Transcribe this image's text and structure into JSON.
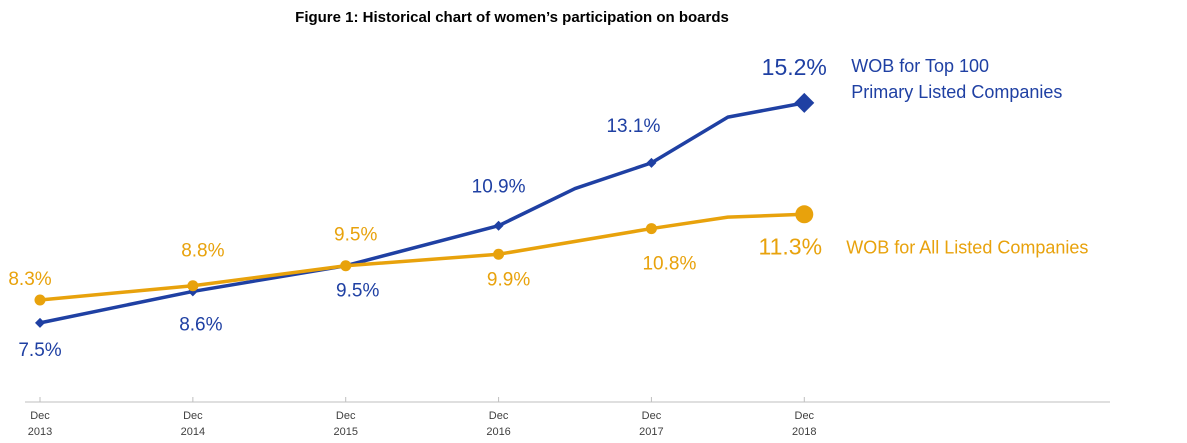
{
  "chart_data": {
    "type": "line",
    "title": "Figure 1: Historical chart of women’s participation on boards",
    "x": [
      2013,
      2014,
      2015,
      2016,
      2016.5,
      2017,
      2017.5,
      2018
    ],
    "xlim": [
      2013,
      2020
    ],
    "xticks": [
      {
        "value": 2013,
        "label": "Dec 2013"
      },
      {
        "value": 2014,
        "label": "Dec 2014"
      },
      {
        "value": 2015,
        "label": "Dec 2015"
      },
      {
        "value": 2016,
        "label": "Dec 2016"
      },
      {
        "value": 2017,
        "label": "Dec 2017"
      },
      {
        "value": 2018,
        "label": "Dec 2018"
      }
    ],
    "ylim": [
      4.8,
      18.8
    ],
    "series": [
      {
        "name": "WOB for Top 100 Primary Listed Companies",
        "color": "#1f40a3",
        "values": [
          7.5,
          8.6,
          9.5,
          10.9,
          12.2,
          13.1,
          14.7,
          15.2
        ],
        "value_labels": [
          "7.5%",
          "8.6%",
          "9.5%",
          "10.9%",
          null,
          "13.1%",
          null,
          "15.2%"
        ]
      },
      {
        "name": "WOB for All Listed Companies",
        "color": "#e8a20c",
        "values": [
          8.3,
          8.8,
          9.5,
          9.9,
          null,
          10.8,
          11.2,
          11.3
        ],
        "value_labels": [
          "8.3%",
          "8.8%",
          "9.5%",
          "9.9%",
          null,
          "10.8%",
          null,
          "11.3%"
        ]
      }
    ]
  }
}
